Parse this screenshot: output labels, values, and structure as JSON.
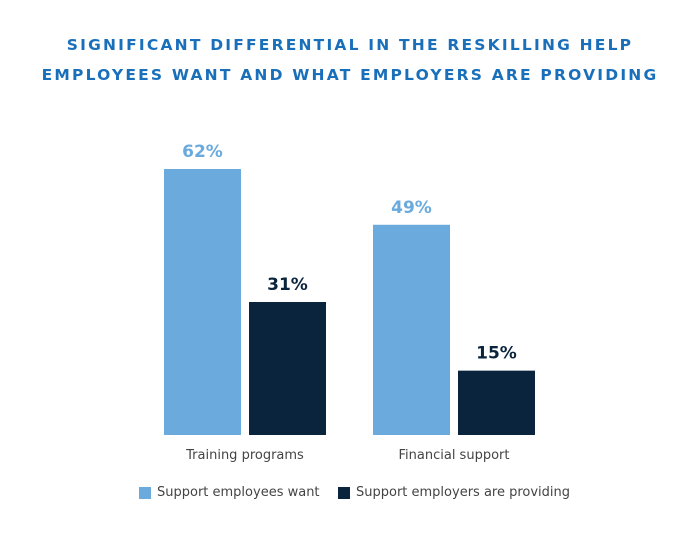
{
  "chart_data": {
    "type": "bar",
    "title": "SIGNIFICANT DIFFERENTIAL IN THE RESKILLING HELP EMPLOYEES WANT AND WHAT EMPLOYERS ARE PROVIDING",
    "title_lines": [
      "SIGNIFICANT DIFFERENTIAL IN THE RESKILLING HELP",
      "EMPLOYEES WANT AND WHAT EMPLOYERS ARE PROVIDING"
    ],
    "categories": [
      "Training programs",
      "Financial support"
    ],
    "series": [
      {
        "name": "Support employees want",
        "values": [
          62,
          49
        ],
        "labels": [
          "62%",
          "49%"
        ],
        "color": "#6aaadc",
        "label_color": "#6aaadc"
      },
      {
        "name": "Support employers are providing",
        "values": [
          31,
          15
        ],
        "labels": [
          "31%",
          "15%"
        ],
        "color": "#0b243d",
        "label_color": "#0b243d"
      }
    ],
    "ylim": [
      0,
      62
    ],
    "grid": false,
    "legend_position": "bottom",
    "xlabel": "",
    "ylabel": ""
  }
}
